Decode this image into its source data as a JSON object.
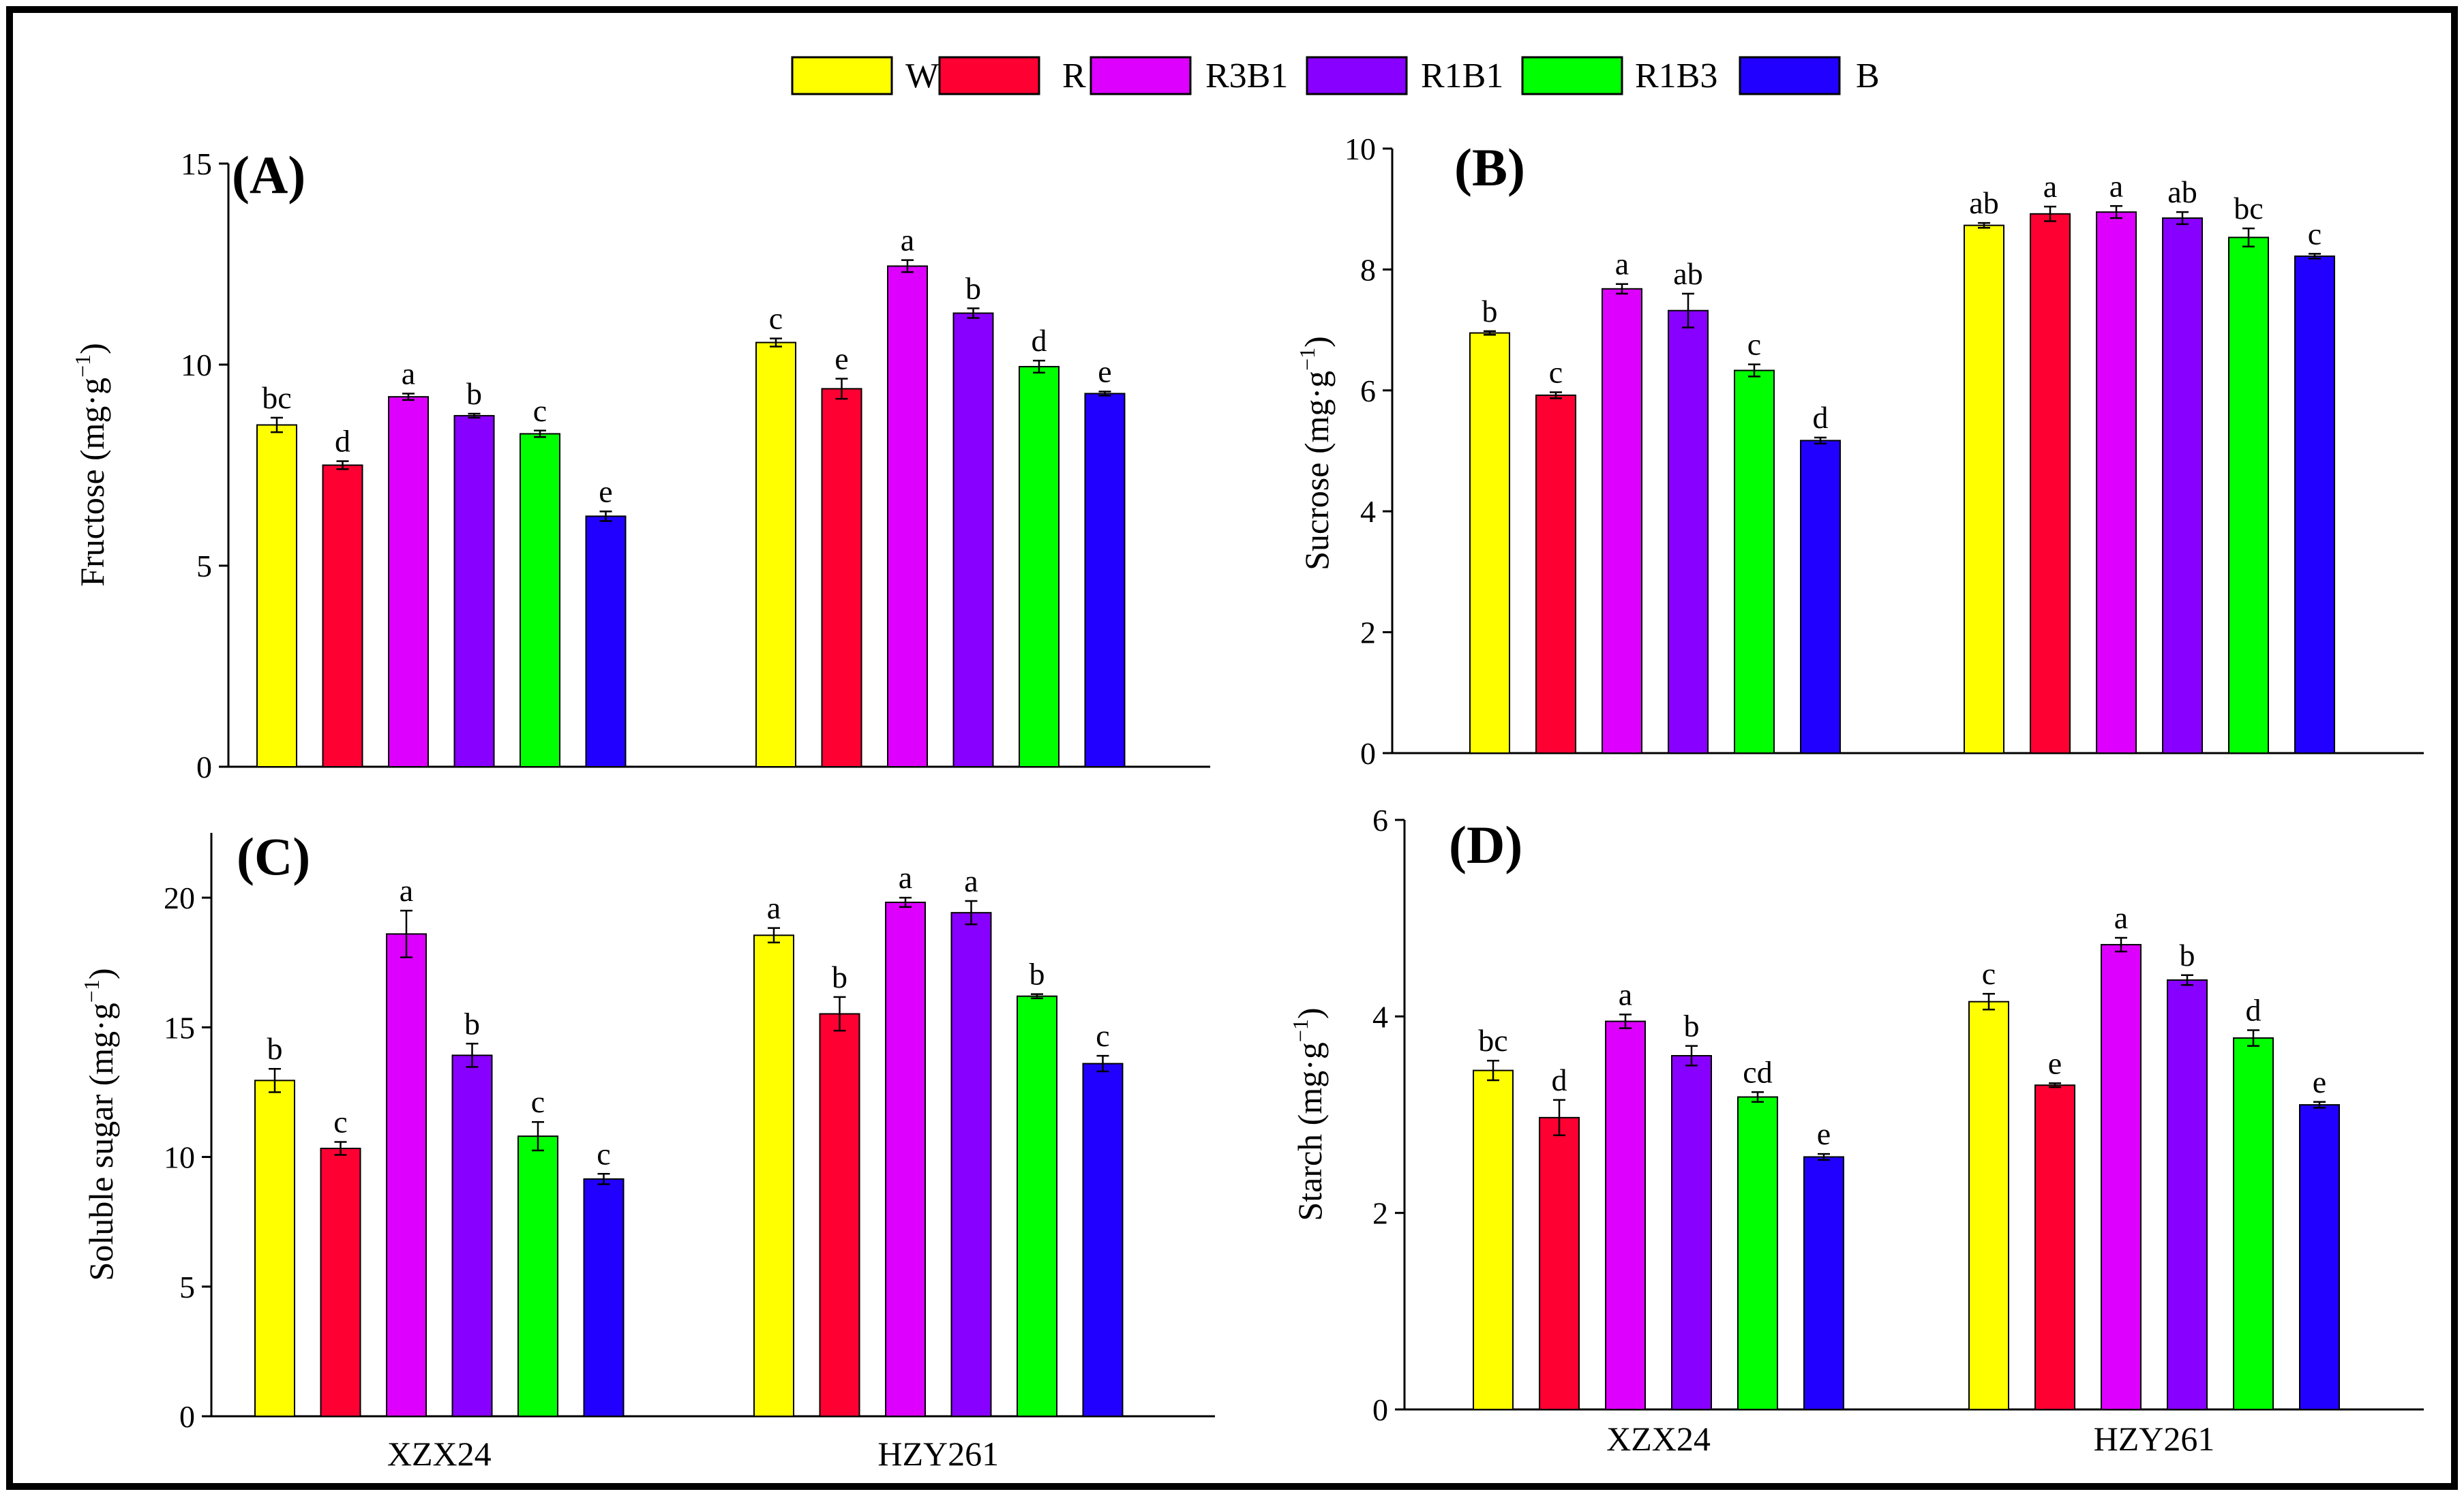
{
  "legend": [
    {
      "label": "W",
      "color": "#ffff00"
    },
    {
      "label": "R",
      "color": "#ff0033"
    },
    {
      "label": "R3B1",
      "color": "#dd00ff"
    },
    {
      "label": "R1B1",
      "color": "#8800ff"
    },
    {
      "label": "R1B3",
      "color": "#00ff00"
    },
    {
      "label": "B",
      "color": "#2200ff"
    }
  ],
  "chart_data": [
    {
      "type": "bar",
      "panel": "(A)",
      "ylabel": "Fructose (mg·g",
      "ylabel_exp": "−1",
      "ylabel_close": ")",
      "categories": [
        "XZX24",
        "HZY261"
      ],
      "show_category_labels": false,
      "ylim": [
        0,
        15
      ],
      "yticks": [
        0,
        5,
        10,
        15
      ],
      "series": [
        {
          "name": "W",
          "values": [
            8.5,
            10.55
          ],
          "errors": [
            0.18,
            0.1
          ],
          "letters": [
            "bc",
            "c"
          ]
        },
        {
          "name": "R",
          "values": [
            7.5,
            9.4
          ],
          "errors": [
            0.1,
            0.25
          ],
          "letters": [
            "d",
            "e"
          ]
        },
        {
          "name": "R3B1",
          "values": [
            9.2,
            12.45
          ],
          "errors": [
            0.08,
            0.15
          ],
          "letters": [
            "a",
            "a"
          ]
        },
        {
          "name": "R1B1",
          "values": [
            8.73,
            11.28
          ],
          "errors": [
            0.05,
            0.12
          ],
          "letters": [
            "b",
            "b"
          ]
        },
        {
          "name": "R1B3",
          "values": [
            8.28,
            9.95
          ],
          "errors": [
            0.08,
            0.15
          ],
          "letters": [
            "c",
            "d"
          ]
        },
        {
          "name": "B",
          "values": [
            6.23,
            9.28
          ],
          "errors": [
            0.12,
            0.05
          ],
          "letters": [
            "e",
            "e"
          ]
        }
      ]
    },
    {
      "type": "bar",
      "panel": "(B)",
      "ylabel": "Sucrose (mg·g",
      "ylabel_exp": "−1",
      "ylabel_close": ")",
      "categories": [
        "XZX24",
        "HZY261"
      ],
      "show_category_labels": false,
      "ylim": [
        0,
        10
      ],
      "yticks": [
        0,
        2,
        4,
        6,
        8,
        10
      ],
      "series": [
        {
          "name": "W",
          "values": [
            6.95,
            8.73
          ],
          "errors": [
            0.03,
            0.04
          ],
          "letters": [
            "b",
            "ab"
          ]
        },
        {
          "name": "R",
          "values": [
            5.92,
            8.92
          ],
          "errors": [
            0.05,
            0.12
          ],
          "letters": [
            "c",
            "a"
          ]
        },
        {
          "name": "R3B1",
          "values": [
            7.68,
            8.95
          ],
          "errors": [
            0.08,
            0.1
          ],
          "letters": [
            "a",
            "a"
          ]
        },
        {
          "name": "R1B1",
          "values": [
            7.32,
            8.85
          ],
          "errors": [
            0.28,
            0.1
          ],
          "letters": [
            "ab",
            "ab"
          ]
        },
        {
          "name": "R1B3",
          "values": [
            6.33,
            8.53
          ],
          "errors": [
            0.1,
            0.15
          ],
          "letters": [
            "c",
            "bc"
          ]
        },
        {
          "name": "B",
          "values": [
            5.17,
            8.22
          ],
          "errors": [
            0.05,
            0.04
          ],
          "letters": [
            "d",
            "c"
          ]
        }
      ]
    },
    {
      "type": "bar",
      "panel": "(C)",
      "ylabel": "Soluble sugar (mg·g",
      "ylabel_exp": "−1",
      "ylabel_close": ")",
      "categories": [
        "XZX24",
        "HZY261"
      ],
      "show_category_labels": true,
      "ylim": [
        0,
        22.5
      ],
      "yticks": [
        0,
        5,
        10,
        15,
        20
      ],
      "series": [
        {
          "name": "W",
          "values": [
            12.95,
            18.55
          ],
          "errors": [
            0.45,
            0.28
          ],
          "letters": [
            "b",
            "a"
          ]
        },
        {
          "name": "R",
          "values": [
            10.33,
            15.52
          ],
          "errors": [
            0.25,
            0.65
          ],
          "letters": [
            "c",
            "b"
          ]
        },
        {
          "name": "R3B1",
          "values": [
            18.6,
            19.82
          ],
          "errors": [
            0.9,
            0.18
          ],
          "letters": [
            "a",
            "a"
          ]
        },
        {
          "name": "R1B1",
          "values": [
            13.92,
            19.42
          ],
          "errors": [
            0.45,
            0.45
          ],
          "letters": [
            "b",
            "a"
          ]
        },
        {
          "name": "R1B3",
          "values": [
            10.8,
            16.2
          ],
          "errors": [
            0.55,
            0.08
          ],
          "letters": [
            "c",
            "b"
          ]
        },
        {
          "name": "B",
          "values": [
            9.15,
            13.6
          ],
          "errors": [
            0.2,
            0.3
          ],
          "letters": [
            "c",
            "c"
          ]
        }
      ]
    },
    {
      "type": "bar",
      "panel": "(D)",
      "ylabel": "Starch (mg·g",
      "ylabel_exp": "−1",
      "ylabel_close": ")",
      "categories": [
        "XZX24",
        "HZY261"
      ],
      "show_category_labels": true,
      "ylim": [
        0,
        6
      ],
      "yticks": [
        0,
        2,
        4,
        6
      ],
      "series": [
        {
          "name": "W",
          "values": [
            3.45,
            4.15
          ],
          "errors": [
            0.1,
            0.08
          ],
          "letters": [
            "bc",
            "c"
          ]
        },
        {
          "name": "R",
          "values": [
            2.97,
            3.3
          ],
          "errors": [
            0.18,
            0.02
          ],
          "letters": [
            "d",
            "e"
          ]
        },
        {
          "name": "R3B1",
          "values": [
            3.95,
            4.73
          ],
          "errors": [
            0.07,
            0.07
          ],
          "letters": [
            "a",
            "a"
          ]
        },
        {
          "name": "R1B1",
          "values": [
            3.6,
            4.37
          ],
          "errors": [
            0.1,
            0.05
          ],
          "letters": [
            "b",
            "b"
          ]
        },
        {
          "name": "R1B3",
          "values": [
            3.18,
            3.78
          ],
          "errors": [
            0.05,
            0.08
          ],
          "letters": [
            "cd",
            "d"
          ]
        },
        {
          "name": "B",
          "values": [
            2.57,
            3.1
          ],
          "errors": [
            0.03,
            0.03
          ],
          "letters": [
            "e",
            "e"
          ]
        }
      ]
    }
  ]
}
